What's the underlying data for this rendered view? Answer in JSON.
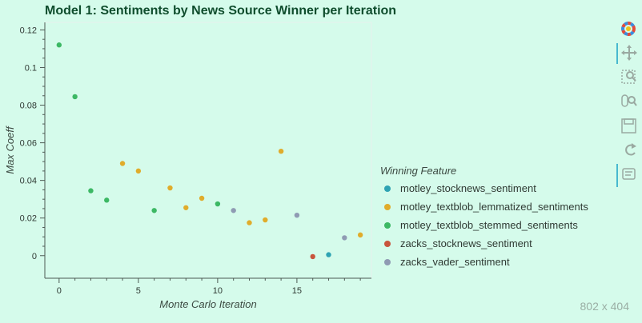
{
  "chart_data": {
    "type": "scatter",
    "title": "Model 1: Sentiments by News Source Winner per Iteration",
    "xlabel": "Monte Carlo Iteration",
    "ylabel": "Max Coeff",
    "xlim": [
      -0.9,
      19.7
    ],
    "ylim": [
      -0.012,
      0.124
    ],
    "x_ticks": [
      0,
      5,
      10,
      15
    ],
    "y_ticks": [
      0,
      0.02,
      0.04,
      0.06,
      0.08,
      0.1,
      0.12
    ],
    "x_tick_labels": [
      "0",
      "5",
      "10",
      "15"
    ],
    "y_tick_labels": [
      "0",
      "0.02",
      "0.04",
      "0.06",
      "0.08",
      "0.1",
      "0.12"
    ],
    "grid": false,
    "legend_title": "Winning Feature",
    "legend_position": "right",
    "series": [
      {
        "name": "motley_stocknews_sentiment",
        "color": "#2ea3b3",
        "points": [
          [
            17,
            0.0005
          ]
        ]
      },
      {
        "name": "motley_textblob_lemmatized_sentiments",
        "color": "#e0ac2b",
        "points": [
          [
            4,
            0.049
          ],
          [
            5,
            0.045
          ],
          [
            7,
            0.036
          ],
          [
            8,
            0.0255
          ],
          [
            9,
            0.0305
          ],
          [
            12,
            0.0175
          ],
          [
            13,
            0.019
          ],
          [
            14,
            0.0555
          ],
          [
            19,
            0.011
          ]
        ]
      },
      {
        "name": "motley_textblob_stemmed_sentiments",
        "color": "#3cb864",
        "points": [
          [
            0,
            0.112
          ],
          [
            1,
            0.0845
          ],
          [
            2,
            0.0345
          ],
          [
            3,
            0.0295
          ],
          [
            6,
            0.024
          ],
          [
            10,
            0.0275
          ]
        ]
      },
      {
        "name": "zacks_stocknews_sentiment",
        "color": "#c8553d",
        "points": [
          [
            16,
            -0.0005
          ]
        ]
      },
      {
        "name": "zacks_vader_sentiment",
        "color": "#8f9bb3",
        "points": [
          [
            11,
            0.024
          ],
          [
            15,
            0.0215
          ],
          [
            18,
            0.0095
          ]
        ]
      }
    ]
  },
  "dims_label": "802 x 404",
  "toolbar": [
    {
      "id": "logo",
      "icon": "bokeh-logo-icon"
    },
    {
      "id": "pan",
      "icon": "pan-icon",
      "active": true
    },
    {
      "id": "box-zoom",
      "icon": "box-zoom-icon"
    },
    {
      "id": "wheel-zoom",
      "icon": "wheel-zoom-icon"
    },
    {
      "id": "save",
      "icon": "save-icon"
    },
    {
      "id": "reset",
      "icon": "reset-icon"
    },
    {
      "id": "hover",
      "icon": "hover-icon",
      "active": true
    }
  ]
}
